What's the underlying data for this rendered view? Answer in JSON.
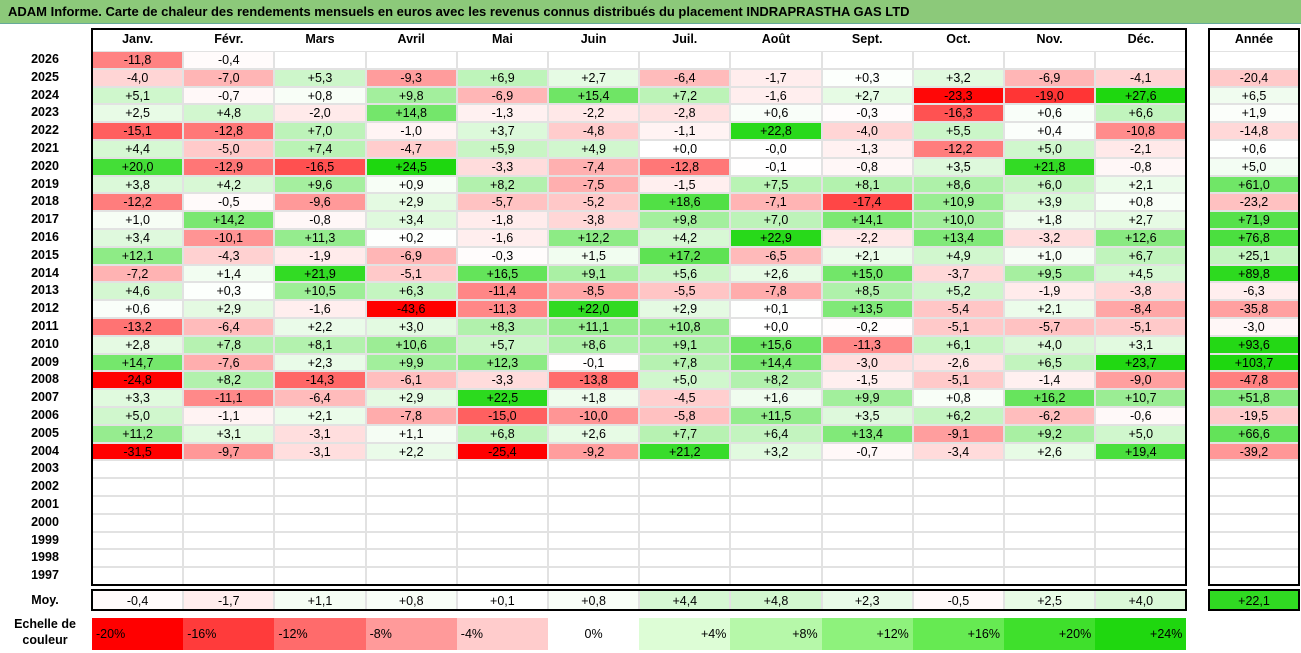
{
  "title": "ADAM Informe. Carte de chaleur des rendements mensuels en euros avec les revenus connus distribués du placement INDRAPRASTHA GAS LTD",
  "chart_data": {
    "type": "heatmap",
    "months": [
      "Janv.",
      "Févr.",
      "Mars",
      "Avril",
      "Mai",
      "Juin",
      "Juil.",
      "Août",
      "Sept.",
      "Oct.",
      "Nov.",
      "Déc."
    ],
    "year_label": "Année",
    "rows": [
      {
        "year": "2026",
        "months": [
          -11.8,
          -0.4,
          null,
          null,
          null,
          null,
          null,
          null,
          null,
          null,
          null,
          null
        ],
        "annual": null
      },
      {
        "year": "2025",
        "months": [
          -4.0,
          -7.0,
          5.3,
          -9.3,
          6.9,
          2.7,
          -6.4,
          -1.7,
          0.3,
          3.2,
          -6.9,
          -4.1
        ],
        "annual": -20.4
      },
      {
        "year": "2024",
        "months": [
          5.1,
          -0.7,
          0.8,
          9.8,
          -6.9,
          15.4,
          7.2,
          -1.6,
          2.7,
          -23.3,
          -19.0,
          27.6
        ],
        "annual": 6.5
      },
      {
        "year": "2023",
        "months": [
          2.5,
          4.8,
          -2.0,
          14.8,
          -1.3,
          -2.2,
          -2.8,
          0.6,
          -0.3,
          -16.3,
          0.6,
          6.6
        ],
        "annual": 1.9
      },
      {
        "year": "2022",
        "months": [
          -15.1,
          -12.8,
          7.0,
          -1.0,
          3.7,
          -4.8,
          -1.1,
          22.8,
          -4.0,
          5.5,
          0.4,
          -10.8
        ],
        "annual": -14.8
      },
      {
        "year": "2021",
        "months": [
          4.4,
          -5.0,
          7.4,
          -4.7,
          5.9,
          4.9,
          0.0,
          -0.0,
          -1.3,
          -12.2,
          5.0,
          -2.1
        ],
        "annual": 0.6
      },
      {
        "year": "2020",
        "months": [
          20.0,
          -12.9,
          -16.5,
          24.5,
          -3.3,
          -7.4,
          -12.8,
          -0.1,
          -0.8,
          3.5,
          21.8,
          -0.8
        ],
        "annual": 5.0
      },
      {
        "year": "2019",
        "months": [
          3.8,
          4.2,
          9.6,
          0.9,
          8.2,
          -7.5,
          -1.5,
          7.5,
          8.1,
          8.6,
          6.0,
          2.1
        ],
        "annual": 61.0
      },
      {
        "year": "2018",
        "months": [
          -12.2,
          -0.5,
          -9.6,
          2.9,
          -5.7,
          -5.2,
          18.6,
          -7.1,
          -17.4,
          10.9,
          3.9,
          0.8
        ],
        "annual": -23.2
      },
      {
        "year": "2017",
        "months": [
          1.0,
          14.2,
          -0.8,
          3.4,
          -1.8,
          -3.8,
          9.8,
          7.0,
          14.1,
          10.0,
          1.8,
          2.7
        ],
        "annual": 71.9
      },
      {
        "year": "2016",
        "months": [
          3.4,
          -10.1,
          11.3,
          0.2,
          -1.6,
          12.2,
          4.2,
          22.9,
          -2.2,
          13.4,
          -3.2,
          12.6
        ],
        "annual": 76.8
      },
      {
        "year": "2015",
        "months": [
          12.1,
          -4.3,
          -1.9,
          -6.9,
          -0.3,
          1.5,
          17.2,
          -6.5,
          2.1,
          4.9,
          1.0,
          6.7
        ],
        "annual": 25.1
      },
      {
        "year": "2014",
        "months": [
          -7.2,
          1.4,
          21.9,
          -5.1,
          16.5,
          9.1,
          5.6,
          2.6,
          15.0,
          -3.7,
          9.5,
          4.5
        ],
        "annual": 89.8
      },
      {
        "year": "2013",
        "months": [
          4.6,
          0.3,
          10.5,
          6.3,
          -11.4,
          -8.5,
          -5.5,
          -7.8,
          8.5,
          5.2,
          -1.9,
          -3.8
        ],
        "annual": -6.3
      },
      {
        "year": "2012",
        "months": [
          0.6,
          2.9,
          -1.6,
          -43.6,
          -11.3,
          22.0,
          2.9,
          0.1,
          13.5,
          -5.4,
          2.1,
          -8.4
        ],
        "annual": -35.8
      },
      {
        "year": "2011",
        "months": [
          -13.2,
          -6.4,
          2.2,
          3.0,
          8.3,
          11.1,
          10.8,
          0.0,
          -0.2,
          -5.1,
          -5.7,
          -5.1
        ],
        "annual": -3.0
      },
      {
        "year": "2010",
        "months": [
          2.8,
          7.8,
          8.1,
          10.6,
          5.7,
          8.6,
          9.1,
          15.6,
          -11.3,
          6.1,
          4.0,
          3.1
        ],
        "annual": 93.6
      },
      {
        "year": "2009",
        "months": [
          14.7,
          -7.6,
          2.3,
          9.9,
          12.3,
          -0.1,
          7.8,
          14.4,
          -3.0,
          -2.6,
          6.5,
          23.7
        ],
        "annual": 103.7
      },
      {
        "year": "2008",
        "months": [
          -24.8,
          8.2,
          -14.3,
          -6.1,
          -3.3,
          -13.8,
          5.0,
          8.2,
          -1.5,
          -5.1,
          -1.4,
          -9.0
        ],
        "annual": -47.8
      },
      {
        "year": "2007",
        "months": [
          3.3,
          -11.1,
          -6.4,
          2.9,
          22.5,
          1.8,
          -4.5,
          1.6,
          9.9,
          0.8,
          16.2,
          10.7
        ],
        "annual": 51.8
      },
      {
        "year": "2006",
        "months": [
          5.0,
          -1.1,
          2.1,
          -7.8,
          -15.0,
          -10.0,
          -5.8,
          11.5,
          3.5,
          6.2,
          -6.2,
          -0.6
        ],
        "annual": -19.5
      },
      {
        "year": "2005",
        "months": [
          11.2,
          3.1,
          -3.1,
          1.1,
          6.8,
          2.6,
          7.7,
          6.4,
          13.4,
          -9.1,
          9.2,
          5.0
        ],
        "annual": 66.6
      },
      {
        "year": "2004",
        "months": [
          -31.5,
          -9.7,
          -3.1,
          2.2,
          -25.4,
          -9.2,
          21.2,
          3.2,
          -0.7,
          -3.4,
          2.6,
          19.4
        ],
        "annual": -39.2
      },
      {
        "year": "2003",
        "months": [
          null,
          null,
          null,
          null,
          null,
          null,
          null,
          null,
          null,
          null,
          null,
          null
        ],
        "annual": null
      },
      {
        "year": "2002",
        "months": [
          null,
          null,
          null,
          null,
          null,
          null,
          null,
          null,
          null,
          null,
          null,
          null
        ],
        "annual": null
      },
      {
        "year": "2001",
        "months": [
          null,
          null,
          null,
          null,
          null,
          null,
          null,
          null,
          null,
          null,
          null,
          null
        ],
        "annual": null
      },
      {
        "year": "2000",
        "months": [
          null,
          null,
          null,
          null,
          null,
          null,
          null,
          null,
          null,
          null,
          null,
          null
        ],
        "annual": null
      },
      {
        "year": "1999",
        "months": [
          null,
          null,
          null,
          null,
          null,
          null,
          null,
          null,
          null,
          null,
          null,
          null
        ],
        "annual": null
      },
      {
        "year": "1998",
        "months": [
          null,
          null,
          null,
          null,
          null,
          null,
          null,
          null,
          null,
          null,
          null,
          null
        ],
        "annual": null
      },
      {
        "year": "1997",
        "months": [
          null,
          null,
          null,
          null,
          null,
          null,
          null,
          null,
          null,
          null,
          null,
          null
        ],
        "annual": null
      }
    ],
    "average": {
      "label": "Moy.",
      "months": [
        -0.4,
        -1.7,
        1.1,
        0.8,
        0.1,
        0.8,
        4.4,
        4.8,
        2.3,
        -0.5,
        2.5,
        4.0
      ],
      "annual": 22.1
    },
    "scale": {
      "label": "Echelle de couleur",
      "steps": [
        {
          "label": "-20%",
          "value": -20,
          "color": "#ff0000"
        },
        {
          "label": "-16%",
          "value": -16,
          "color": "#ff3b3b"
        },
        {
          "label": "-12%",
          "value": -12,
          "color": "#ff6b6b"
        },
        {
          "label": "-8%",
          "value": -8,
          "color": "#ff9a9a"
        },
        {
          "label": "-4%",
          "value": -4,
          "color": "#ffcccc"
        },
        {
          "label": "0%",
          "value": 0,
          "color": "#ffffff"
        },
        {
          "label": "+4%",
          "value": 4,
          "color": "#ddfdd6"
        },
        {
          "label": "+8%",
          "value": 8,
          "color": "#b6f8a9"
        },
        {
          "label": "+12%",
          "value": 12,
          "color": "#8ef27c"
        },
        {
          "label": "+16%",
          "value": 16,
          "color": "#66ea52"
        },
        {
          "label": "+20%",
          "value": 20,
          "color": "#3fe02c"
        },
        {
          "label": "+24%",
          "value": 24,
          "color": "#1fd70f"
        }
      ]
    }
  }
}
